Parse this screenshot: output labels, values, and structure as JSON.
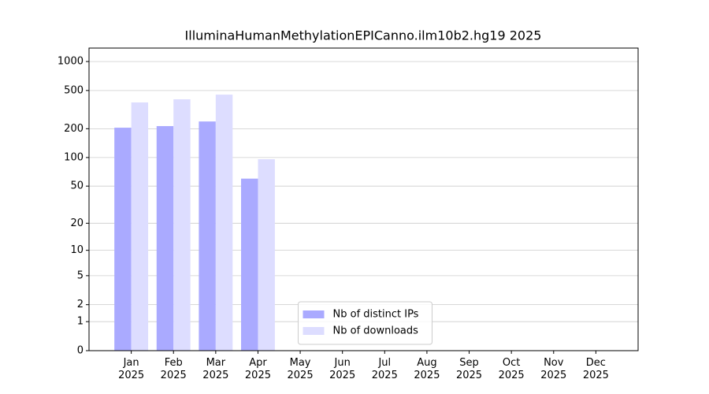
{
  "chart_data": {
    "type": "bar",
    "title": "IlluminaHumanMethylationEPICanno.ilm10b2.hg19 2025",
    "categories": [
      "Jan 2025",
      "Feb 2025",
      "Mar 2025",
      "Apr 2025",
      "May 2025",
      "Jun 2025",
      "Jul 2025",
      "Aug 2025",
      "Sep 2025",
      "Oct 2025",
      "Nov 2025",
      "Dec 2025"
    ],
    "series": [
      {
        "name": "Nb of distinct IPs",
        "color": "#aaaaff",
        "values": [
          205,
          213,
          238,
          60,
          0,
          0,
          0,
          0,
          0,
          0,
          0,
          0
        ]
      },
      {
        "name": "Nb of downloads",
        "color": "#ddddff",
        "values": [
          376,
          405,
          453,
          96,
          0,
          0,
          0,
          0,
          0,
          0,
          0,
          0
        ]
      }
    ],
    "yscale": "log1p",
    "ylim": [
      0,
      1380
    ],
    "yticks": [
      0,
      1,
      2,
      5,
      10,
      20,
      50,
      100,
      200,
      500,
      1000
    ],
    "grid": true,
    "legend": "lower center"
  }
}
